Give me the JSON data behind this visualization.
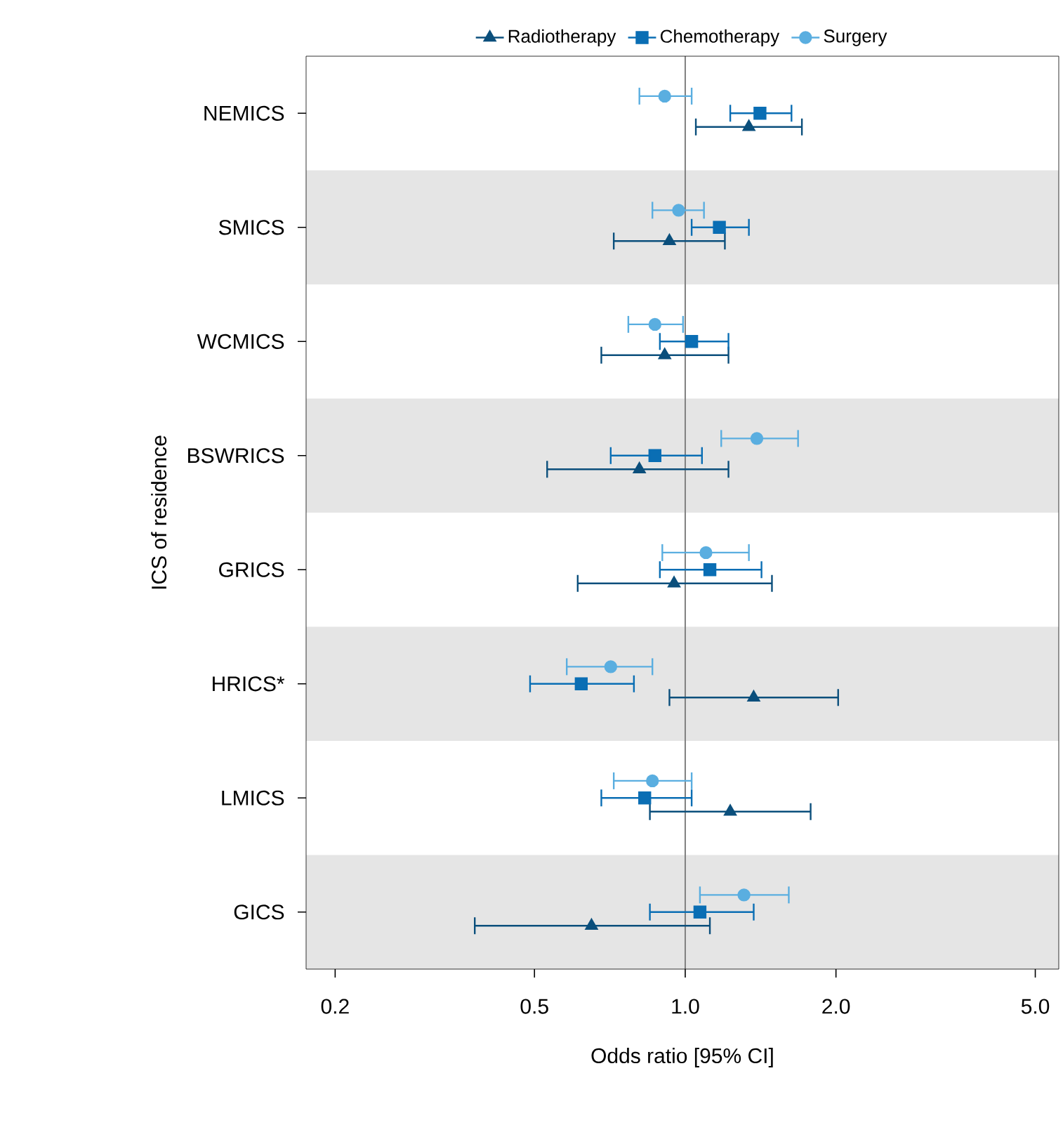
{
  "chart_data": {
    "type": "scatter",
    "orientation": "horizontal",
    "log": "x",
    "xlabel": "Odds ratio [95% CI]",
    "ylabel": "ICS of residence",
    "legend": "top",
    "categories": [
      "NEMICS",
      "SMICS",
      "WCMICS",
      "BSWRICS",
      "GRICS",
      "HRICS*",
      "LMICS",
      "GICS"
    ],
    "xlim": [
      0.175,
      5.57
    ],
    "xticks": [
      0.2,
      0.5,
      {
        "value": 1,
        "label": "1.0"
      },
      {
        "value": 2,
        "label": "2.0"
      },
      {
        "value": 5,
        "label": "5.0"
      }
    ],
    "ref_lines": [
      {
        "axis": "x",
        "value": 1,
        "color": "#808080"
      }
    ],
    "bands": [
      {
        "axis": "y",
        "from": "SMICS",
        "to": "SMICS",
        "color": "#e5e5e5"
      },
      {
        "axis": "y",
        "from": "BSWRICS",
        "to": "BSWRICS",
        "color": "#e5e5e5"
      },
      {
        "axis": "y",
        "from": "HRICS*",
        "to": "HRICS*",
        "color": "#e5e5e5"
      },
      {
        "axis": "y",
        "from": "GICS",
        "to": "GICS",
        "color": "#e5e5e5"
      }
    ],
    "series": [
      {
        "name": "Radiotherapy",
        "color": "#0b4f7c",
        "marker": "triangle",
        "values": [
          1.34,
          0.93,
          0.91,
          0.81,
          0.95,
          1.37,
          1.23,
          0.65
        ],
        "errors": [
          [
            1.05,
            1.71
          ],
          [
            0.72,
            1.2
          ],
          [
            0.68,
            1.22
          ],
          [
            0.53,
            1.22
          ],
          [
            0.61,
            1.49
          ],
          [
            0.93,
            2.02
          ],
          [
            0.85,
            1.78
          ],
          [
            0.38,
            1.12
          ]
        ]
      },
      {
        "name": "Chemotherapy",
        "color": "#0a6eb4",
        "marker": "square",
        "values": [
          1.41,
          1.17,
          1.03,
          0.87,
          1.12,
          0.62,
          0.83,
          1.07
        ],
        "errors": [
          [
            1.23,
            1.63
          ],
          [
            1.03,
            1.34
          ],
          [
            0.89,
            1.22
          ],
          [
            0.71,
            1.08
          ],
          [
            0.89,
            1.42
          ],
          [
            0.49,
            0.79
          ],
          [
            0.68,
            1.03
          ],
          [
            0.85,
            1.37
          ]
        ]
      },
      {
        "name": "Surgery",
        "color": "#5aaee0",
        "marker": "circle",
        "values": [
          0.91,
          0.97,
          0.87,
          1.39,
          1.1,
          0.71,
          0.86,
          1.31
        ],
        "errors": [
          [
            0.81,
            1.03
          ],
          [
            0.86,
            1.09
          ],
          [
            0.77,
            0.99
          ],
          [
            1.18,
            1.68
          ],
          [
            0.9,
            1.34
          ],
          [
            0.58,
            0.86
          ],
          [
            0.72,
            1.03
          ],
          [
            1.07,
            1.61
          ]
        ]
      }
    ]
  }
}
